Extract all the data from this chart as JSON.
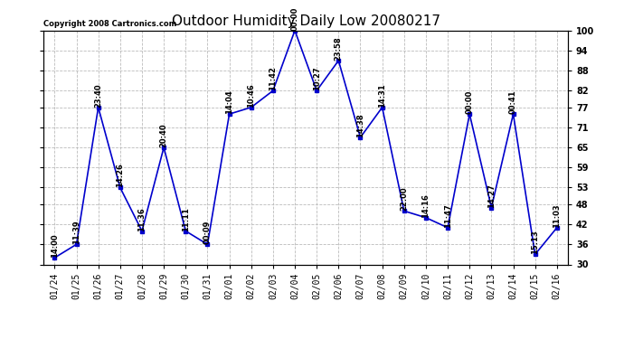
{
  "title": "Outdoor Humidity Daily Low 20080217",
  "copyright": "Copyright 2008 Cartronics.com",
  "x_labels": [
    "01/24",
    "01/25",
    "01/26",
    "01/27",
    "01/28",
    "01/29",
    "01/30",
    "01/31",
    "02/01",
    "02/02",
    "02/03",
    "02/04",
    "02/05",
    "02/06",
    "02/07",
    "02/08",
    "02/09",
    "02/10",
    "02/11",
    "02/12",
    "02/13",
    "02/14",
    "02/15",
    "02/16"
  ],
  "y_values": [
    32,
    36,
    77,
    53,
    40,
    65,
    40,
    36,
    75,
    77,
    82,
    100,
    82,
    91,
    68,
    77,
    46,
    44,
    41,
    75,
    47,
    75,
    33,
    41
  ],
  "point_labels": [
    "14:00",
    "11:39",
    "23:40",
    "14:26",
    "11:36",
    "20:40",
    "11:11",
    "00:09",
    "14:04",
    "10:46",
    "11:42",
    "00:00",
    "10:27",
    "23:58",
    "14:38",
    "14:31",
    "22:00",
    "14:16",
    "11:47",
    "00:00",
    "14:27",
    "00:41",
    "15:13",
    "11:03"
  ],
  "line_color": "#0000CC",
  "marker_color": "#0000CC",
  "background_color": "#ffffff",
  "grid_color": "#bbbbbb",
  "ylim": [
    30,
    100
  ],
  "yticks_left": [
    30,
    36,
    42,
    48,
    53,
    59,
    65,
    71,
    77,
    82,
    88,
    94,
    100
  ],
  "yticks_right": [
    30,
    36,
    42,
    48,
    53,
    59,
    65,
    71,
    77,
    82,
    88,
    94,
    100
  ],
  "title_fontsize": 11,
  "label_fontsize": 6,
  "tick_fontsize": 7,
  "copyright_fontsize": 6
}
